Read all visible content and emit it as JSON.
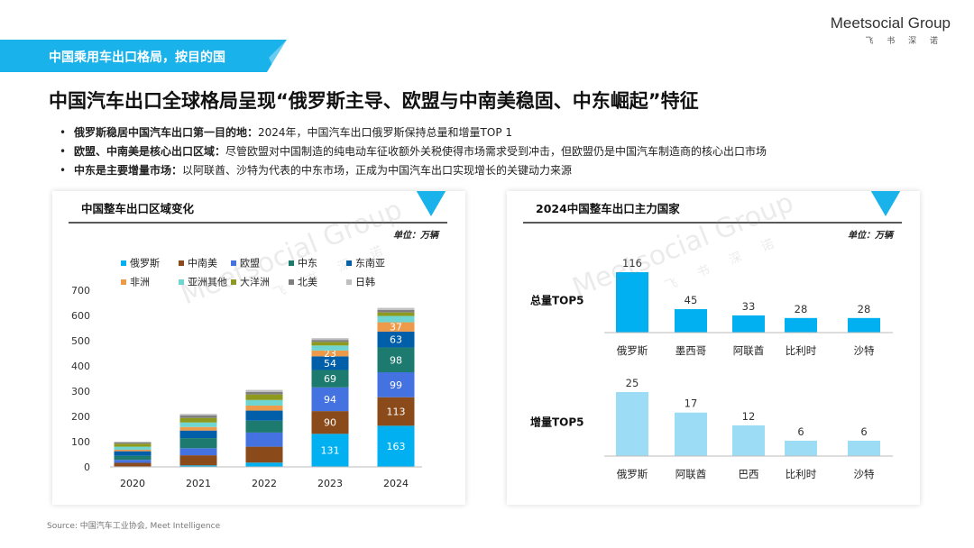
{
  "header": {
    "section_tag": "中国乘用车出口格局，按目的国",
    "logo_text": "Meetsocial Group",
    "logo_subtext": "飞 书 深 诺",
    "headline": "中国汽车出口全球格局呈现“俄罗斯主导、欧盟与中南美稳固、中东崛起”特征"
  },
  "bullets": [
    {
      "key": "俄罗斯稳居中国汽车出口第一目的地：",
      "text": "2024年，中国汽车出口俄罗斯保持总量和增量TOP 1"
    },
    {
      "key": "欧盟、中南美是核心出口区域：",
      "text": "尽管欧盟对中国制造的纯电动车征收额外关税使得市场需求受到冲击，但欧盟仍是中国汽车制造商的核心出口市场"
    },
    {
      "key": "中东是主要增量市场：",
      "text": "以阿联酋、沙特为代表的中东市场，正成为中国汽车出口实现增长的关键动力来源"
    }
  ],
  "source": "Source: 中国汽车工业协会, Meet Intelligence",
  "watermark": {
    "text": "Meetsocial Group",
    "sub": "飞 书 深 诺"
  },
  "colors": {
    "accent": "#1ab2ea",
    "deep_blue": "#0070c0"
  },
  "chart_data": [
    {
      "type": "bar",
      "stacked": true,
      "title": "中国整车出口区域变化",
      "unit_label": "单位：万辆",
      "categories": [
        "2020",
        "2021",
        "2022",
        "2023",
        "2024"
      ],
      "ylim": [
        0,
        700
      ],
      "y_ticks": [
        "0",
        "100",
        "200",
        "300",
        "400",
        "500",
        "600",
        "700"
      ],
      "legend_position": "top",
      "series": [
        {
          "name": "俄罗斯",
          "color": "#00b0f0",
          "values": [
            2,
            6,
            17,
            131,
            163
          ],
          "labels": [
            "",
            "",
            "",
            "131",
            "163"
          ]
        },
        {
          "name": "中南美",
          "color": "#8b4a1a",
          "values": [
            14,
            40,
            63,
            90,
            113
          ],
          "labels": [
            "",
            "",
            "",
            "90",
            "113"
          ]
        },
        {
          "name": "欧盟",
          "color": "#4472e0",
          "values": [
            12,
            28,
            56,
            94,
            99
          ],
          "labels": [
            "",
            "",
            "",
            "94",
            "99"
          ]
        },
        {
          "name": "中东",
          "color": "#1d7a6e",
          "values": [
            16,
            40,
            47,
            69,
            98
          ],
          "labels": [
            "",
            "",
            "",
            "69",
            "98"
          ]
        },
        {
          "name": "东南亚",
          "color": "#005fa8",
          "values": [
            18,
            30,
            40,
            54,
            63
          ],
          "labels": [
            "",
            "",
            "",
            "54",
            "63"
          ]
        },
        {
          "name": "非洲",
          "color": "#ed9a4a",
          "values": [
            6,
            14,
            20,
            23,
            37
          ],
          "labels": [
            "",
            "",
            "",
            "23",
            "37"
          ]
        },
        {
          "name": "亚洲其他",
          "color": "#6fd5d1",
          "values": [
            12,
            18,
            22,
            20,
            25
          ],
          "labels": [
            "",
            "",
            "",
            "",
            ""
          ]
        },
        {
          "name": "大洋洲",
          "color": "#8e9a1e",
          "values": [
            12,
            18,
            22,
            14,
            14
          ],
          "labels": [
            "",
            "",
            "",
            "",
            ""
          ]
        },
        {
          "name": "北美",
          "color": "#7f7f7f",
          "values": [
            5,
            10,
            10,
            8,
            10
          ],
          "labels": [
            "",
            "",
            "",
            "",
            ""
          ]
        },
        {
          "name": "日韩",
          "color": "#bfbfbf",
          "values": [
            3,
            6,
            8,
            7,
            8
          ],
          "labels": [
            "",
            "",
            "",
            "",
            ""
          ]
        }
      ]
    },
    {
      "type": "bar",
      "title": "2024中国整车出口主力国家",
      "unit_label": "单位：万辆",
      "groups": [
        {
          "name": "总量TOP5",
          "color": "#00b0f0",
          "categories": [
            "俄罗斯",
            "墨西哥",
            "阿联酋",
            "比利时",
            "沙特"
          ],
          "values": [
            116,
            45,
            33,
            28,
            28
          ]
        },
        {
          "name": "增量TOP5",
          "color": "#9ddcf5",
          "categories": [
            "俄罗斯",
            "阿联酋",
            "巴西",
            "比利时",
            "沙特"
          ],
          "values": [
            25,
            17,
            12,
            6,
            6
          ]
        }
      ]
    }
  ]
}
